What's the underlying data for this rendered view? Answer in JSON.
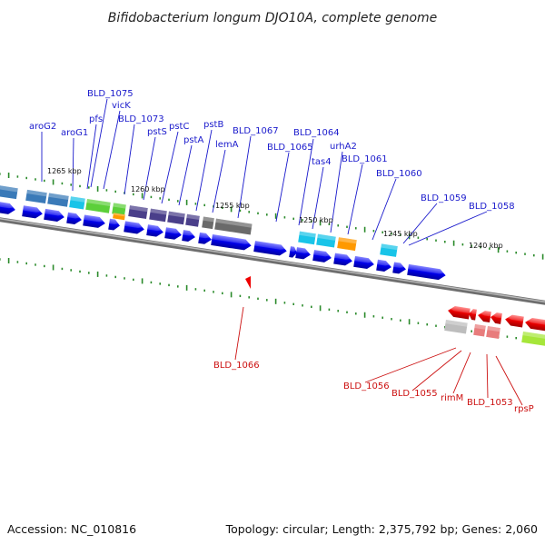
{
  "title": "Bifidobacterium longum DJO10A, complete genome",
  "footer": {
    "accession": "Accession: NC_010816",
    "stats": "Topology: circular; Length: 2,375,792 bp; Genes: 2,060"
  },
  "scale_labels": [
    "1265 kbp",
    "1260 kbp",
    "1255 kbp",
    "1250 kbp",
    "1245 kbp",
    "1240 kbp"
  ],
  "forward_genes": [
    "aroG2",
    "aroG1",
    "pfs",
    "BLD_1075",
    "vicK",
    "BLD_1073",
    "pstS",
    "pstC",
    "pstA",
    "pstB",
    "lemA",
    "BLD_1067",
    "BLD_1065",
    "BLD_1064",
    "tas4",
    "urhA2",
    "BLD_1061",
    "BLD_1060",
    "BLD_1059",
    "BLD_1058"
  ],
  "reverse_genes": [
    "BLD_1066",
    "BLD_1056",
    "BLD_1055",
    "rimM",
    "BLD_1053",
    "rpsP"
  ],
  "colors": {
    "forward_label": "#1a1acc",
    "reverse_label": "#cc1111",
    "forward_arrow": "#0000ee",
    "reverse_arrow": "#ee0000",
    "backbone": "#777777",
    "tick": "#2a8a2a"
  }
}
